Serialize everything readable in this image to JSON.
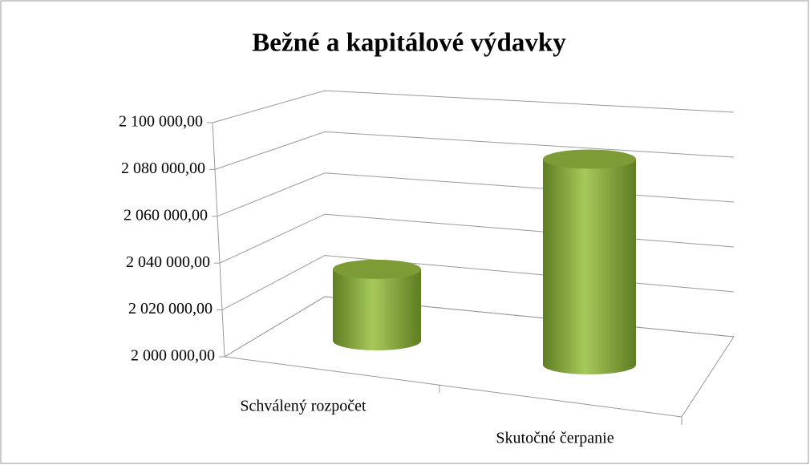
{
  "chart_data": {
    "type": "bar3d",
    "title": "Bežné a kapitálové výdavky",
    "categories": [
      "Schválený rozpočet",
      "Skutočné čerpanie"
    ],
    "values": [
      2033000,
      2090000
    ],
    "color": "#8db040",
    "ylim": [
      2000000,
      2100000
    ],
    "yticks": [
      {
        "value": 2000000,
        "label": "2 000 000,00"
      },
      {
        "value": 2020000,
        "label": "2 020 000,00"
      },
      {
        "value": 2040000,
        "label": "2 040 000,00"
      },
      {
        "value": 2060000,
        "label": "2 060 000,00"
      },
      {
        "value": 2080000,
        "label": "2 080 000,00"
      },
      {
        "value": 2100000,
        "label": "2 100 000,00"
      }
    ],
    "grid": true
  }
}
